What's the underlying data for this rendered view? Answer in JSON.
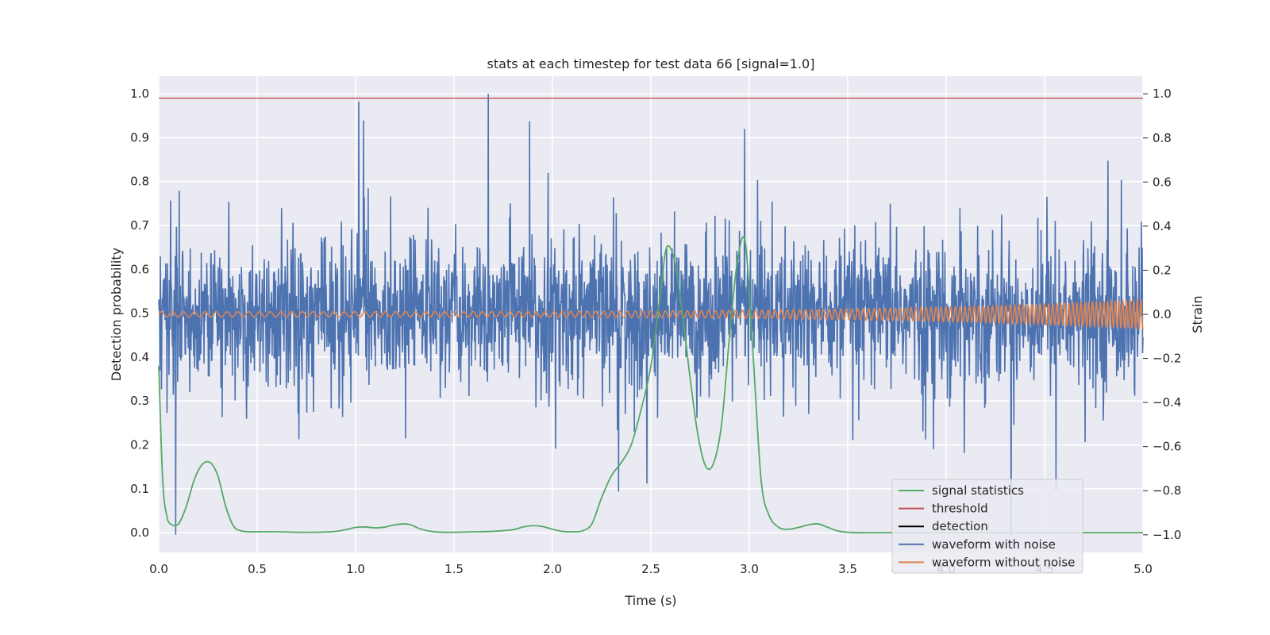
{
  "chart_data": {
    "type": "line",
    "title": "stats at each timestep for test data 66 [signal=1.0]",
    "xlabel": "Time (s)",
    "ylabel_left": "Detection probability",
    "ylabel_right": "Strain",
    "xlim": [
      0.0,
      5.0
    ],
    "ylim_left": [
      -0.045,
      1.04
    ],
    "ylim_right": [
      -1.08,
      1.08
    ],
    "x_ticks": [
      "0.0",
      "0.5",
      "1.0",
      "1.5",
      "2.0",
      "2.5",
      "3.0",
      "3.5",
      "4.0",
      "4.5",
      "5.0"
    ],
    "y_ticks_left": [
      "0.0",
      "0.1",
      "0.2",
      "0.3",
      "0.4",
      "0.5",
      "0.6",
      "0.7",
      "0.8",
      "0.9",
      "1.0"
    ],
    "y_ticks_right": [
      "−1.0",
      "−0.8",
      "−0.6",
      "−0.4",
      "−0.2",
      "0.0",
      "0.2",
      "0.4",
      "0.6",
      "0.8",
      "1.0"
    ],
    "grid": true,
    "legend_position": "lower-right",
    "legend": [
      "signal statistics",
      "threshold",
      "detection",
      "waveform with noise",
      "waveform without noise"
    ],
    "colors": {
      "signal statistics": "#55a868",
      "threshold": "#c44e52",
      "detection": "#000000",
      "waveform with noise": "#4c72b0",
      "waveform without noise": "#dd8452"
    },
    "threshold": 0.99,
    "series": [
      {
        "name": "signal statistics",
        "axis": "left",
        "x": [
          0.0,
          0.02,
          0.04,
          0.06,
          0.1,
          0.14,
          0.18,
          0.22,
          0.26,
          0.3,
          0.34,
          0.38,
          0.42,
          0.46,
          0.5,
          0.6,
          0.7,
          0.8,
          0.9,
          0.95,
          1.0,
          1.05,
          1.1,
          1.15,
          1.2,
          1.25,
          1.28,
          1.32,
          1.36,
          1.4,
          1.45,
          1.5,
          1.6,
          1.7,
          1.8,
          1.85,
          1.9,
          1.95,
          2.0,
          2.05,
          2.1,
          2.15,
          2.2,
          2.25,
          2.3,
          2.35,
          2.4,
          2.45,
          2.5,
          2.55,
          2.58,
          2.62,
          2.66,
          2.7,
          2.74,
          2.78,
          2.82,
          2.86,
          2.9,
          2.94,
          2.98,
          3.02,
          3.06,
          3.1,
          3.15,
          3.2,
          3.25,
          3.3,
          3.35,
          3.4,
          3.45,
          3.5,
          3.6,
          3.8,
          4.0,
          4.5,
          5.0
        ],
        "y": [
          0.38,
          0.12,
          0.04,
          0.02,
          0.02,
          0.06,
          0.12,
          0.155,
          0.16,
          0.13,
          0.06,
          0.015,
          0.004,
          0.002,
          0.002,
          0.002,
          0.001,
          0.001,
          0.003,
          0.007,
          0.012,
          0.013,
          0.011,
          0.013,
          0.018,
          0.02,
          0.018,
          0.01,
          0.005,
          0.002,
          0.001,
          0.001,
          0.002,
          0.003,
          0.007,
          0.013,
          0.016,
          0.014,
          0.008,
          0.003,
          0.002,
          0.004,
          0.02,
          0.08,
          0.13,
          0.16,
          0.2,
          0.28,
          0.38,
          0.55,
          0.65,
          0.62,
          0.5,
          0.35,
          0.22,
          0.15,
          0.16,
          0.25,
          0.45,
          0.62,
          0.66,
          0.4,
          0.12,
          0.04,
          0.012,
          0.008,
          0.012,
          0.018,
          0.02,
          0.012,
          0.004,
          0.001,
          0.0,
          0.0,
          0.0,
          0.0,
          0.0
        ]
      },
      {
        "name": "threshold",
        "axis": "left",
        "x": [
          0.0,
          5.0
        ],
        "y": [
          0.99,
          0.99
        ]
      },
      {
        "name": "detection",
        "axis": "left",
        "x": [],
        "y": []
      },
      {
        "name": "waveform with noise",
        "axis": "right",
        "sample_rate_hz": 500,
        "amplitude_std": 0.16,
        "amplitude_max": 1.0,
        "note_visible": "dense noisy strain between about -1.0 and 1.0"
      },
      {
        "name": "waveform without noise",
        "axis": "right",
        "amplitude_start": 0.012,
        "amplitude_end": 0.065,
        "frequency_start_hz": 18,
        "frequency_end_hz": 55
      }
    ]
  }
}
